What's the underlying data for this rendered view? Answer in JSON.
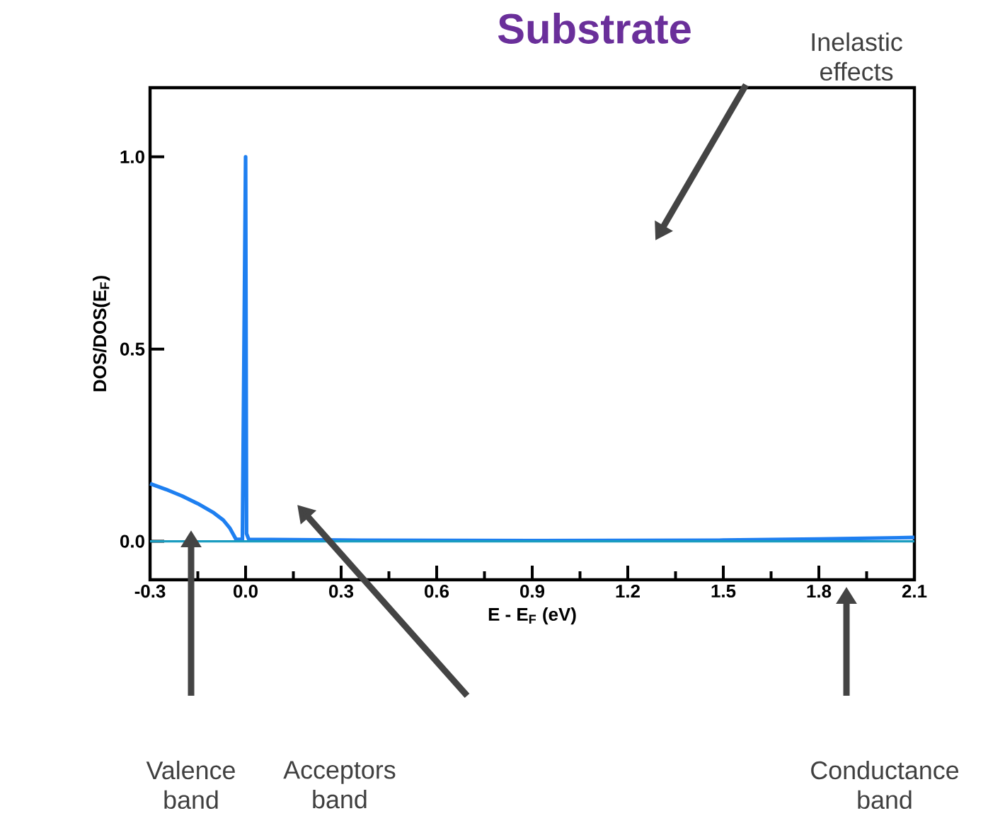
{
  "chart_data": {
    "type": "line",
    "title": "Substrate",
    "xlabel": "E - E$_{F}$ (eV)",
    "ylabel": "DOS/DOS(E$_{F}$)",
    "xlim": [
      -0.3,
      2.1
    ],
    "ylim": [
      -0.1,
      1.18
    ],
    "xticks": [
      -0.3,
      {
        "value": 0,
        "label": "0.0"
      },
      0.3,
      0.6,
      0.9,
      1.2,
      1.5,
      1.8,
      2.1
    ],
    "yticks": [
      {
        "value": 0,
        "label": "0.0"
      },
      0.5,
      {
        "value": 1,
        "label": "1.0"
      }
    ],
    "grid": false,
    "marker": "none",
    "line_style": "solid",
    "series": [
      {
        "color": "#1e7ff0",
        "x": [
          -0.3,
          -0.25,
          -0.2,
          -0.15,
          -0.1,
          -0.07,
          -0.05,
          -0.04,
          -0.03,
          -0.01,
          0,
          0.003,
          0.01,
          0.3,
          0.9,
          1.5,
          1.8,
          2.1
        ],
        "values": [
          0.15,
          0.135,
          0.118,
          0.098,
          0.074,
          0.055,
          0.035,
          0.02,
          0.005,
          0.005,
          1.0,
          0.02,
          0.005,
          0.003,
          0.002,
          0.003,
          0.006,
          0.01
        ]
      },
      {
        "color": "#1a9cc0",
        "x": [
          -0.3,
          2.1
        ],
        "values": [
          0,
          0
        ]
      }
    ],
    "annotations": [
      "Inelastic effects",
      "Valence band",
      "Acceptors band",
      "Conductance band"
    ]
  }
}
